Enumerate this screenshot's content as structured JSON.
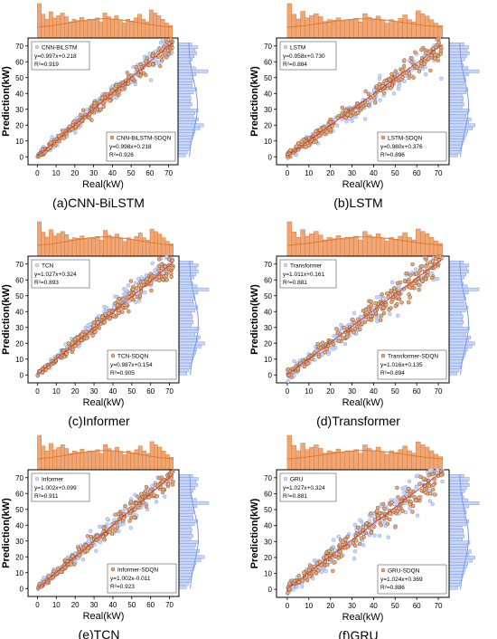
{
  "colors": {
    "blue_fill": "#c9d6f5",
    "blue_edge": "#7d9ae6",
    "orange_fill": "#f0a777",
    "orange_edge": "#e0792f",
    "point_stroke": "#5a4630",
    "fit_line": "#d9463a",
    "frame": "#000000"
  },
  "chart_data": [
    {
      "type": "scatter",
      "caption": "(a)CNN-BiLSTM",
      "xlabel": "Real(kW)",
      "ylabel": "Prediction(kW)",
      "xlim": [
        -5,
        75
      ],
      "ylim": [
        -5,
        75
      ],
      "xticks": [
        "0",
        "10",
        "20",
        "30",
        "40",
        "50",
        "60",
        "70"
      ],
      "yticks": [
        "0",
        "10",
        "20",
        "30",
        "40",
        "50",
        "60",
        "70"
      ],
      "grid": false,
      "marginal_histograms": true,
      "legend_top": {
        "name": "CNN-BiLSTM",
        "equation": "y=0.997x+0.218",
        "r2": "R²=0.919"
      },
      "legend_bottom": {
        "name": "CNN-BiLSTM-SDQN",
        "equation": "y=0.998x+0.218",
        "r2": "R²=0.926"
      },
      "fits": [
        {
          "slope": 0.997,
          "intercept": 0.218
        },
        {
          "slope": 0.998,
          "intercept": 0.218
        }
      ],
      "scatter_range": [
        0,
        72
      ],
      "spread": 2.5,
      "hist_top": [
        55,
        38,
        30,
        42,
        32,
        36,
        40,
        34,
        26,
        30,
        28,
        33,
        27,
        30,
        29,
        32,
        26,
        40,
        34,
        30,
        36,
        29,
        24,
        30,
        27,
        32,
        38,
        30,
        26,
        45,
        40,
        36,
        30,
        24,
        20
      ],
      "hist_right": [
        24,
        30,
        35,
        38,
        41,
        44,
        48,
        52,
        55,
        70,
        82,
        58,
        66,
        50,
        54,
        64,
        38,
        45,
        40,
        42,
        38,
        50,
        60,
        46,
        44,
        50,
        48,
        58,
        96,
        56,
        42,
        38,
        46,
        52,
        60,
        55,
        62,
        44
      ]
    },
    {
      "type": "scatter",
      "caption": "(b)LSTM",
      "xlabel": "Real(kW)",
      "ylabel": "Prediction(kW)",
      "xlim": [
        -5,
        75
      ],
      "ylim": [
        -5,
        75
      ],
      "xticks": [
        "0",
        "10",
        "20",
        "30",
        "40",
        "50",
        "60",
        "70"
      ],
      "yticks": [
        "0",
        "10",
        "20",
        "30",
        "40",
        "50",
        "60",
        "70"
      ],
      "grid": false,
      "marginal_histograms": true,
      "legend_top": {
        "name": "LSTM",
        "equation": "y=0.958x+0.730",
        "r2": "R²=0.884"
      },
      "legend_bottom": {
        "name": "LSTM-SDQN",
        "equation": "y=0.980x+0.376",
        "r2": "R²=0.896"
      },
      "fits": [
        {
          "slope": 0.958,
          "intercept": 0.73
        },
        {
          "slope": 0.98,
          "intercept": 0.376
        }
      ],
      "scatter_range": [
        0,
        72
      ],
      "spread": 3.5,
      "hist_top": [
        58,
        40,
        32,
        45,
        34,
        38,
        41,
        36,
        28,
        31,
        30,
        34,
        29,
        31,
        30,
        33,
        27,
        41,
        35,
        31,
        37,
        30,
        25,
        31,
        28,
        33,
        39,
        31,
        27,
        46,
        41,
        37,
        31,
        25,
        21
      ],
      "hist_right": [
        26,
        32,
        36,
        40,
        42,
        46,
        50,
        54,
        58,
        72,
        80,
        60,
        68,
        52,
        56,
        62,
        40,
        46,
        42,
        44,
        40,
        52,
        58,
        48,
        46,
        52,
        50,
        60,
        92,
        58,
        44,
        40,
        48,
        54,
        62,
        56,
        60,
        46
      ]
    },
    {
      "type": "scatter",
      "caption": "(c)Informer",
      "xlabel": "Real(kW)",
      "ylabel": "Prediction(kW)",
      "xlim": [
        -5,
        75
      ],
      "ylim": [
        -5,
        75
      ],
      "xticks": [
        "0",
        "10",
        "20",
        "30",
        "40",
        "50",
        "60",
        "70"
      ],
      "yticks": [
        "0",
        "10",
        "20",
        "30",
        "40",
        "50",
        "60",
        "70"
      ],
      "grid": false,
      "marginal_histograms": true,
      "legend_top": {
        "name": "TCN",
        "equation": "y=1.027x+0.324",
        "r2": "R²=0.893"
      },
      "legend_bottom": {
        "name": "TCN-SDQN",
        "equation": "y=0.987x+0.154",
        "r2": "R²=0.905"
      },
      "fits": [
        {
          "slope": 1.027,
          "intercept": 0.324
        },
        {
          "slope": 0.987,
          "intercept": 0.154
        }
      ],
      "scatter_range": [
        0,
        72
      ],
      "spread": 3.0,
      "hist_top": [
        56,
        39,
        31,
        43,
        33,
        37,
        40,
        35,
        27,
        30,
        29,
        33,
        28,
        30,
        29,
        32,
        26,
        42,
        34,
        30,
        36,
        29,
        24,
        30,
        27,
        32,
        38,
        30,
        26,
        44,
        40,
        36,
        30,
        24,
        20
      ],
      "hist_right": [
        25,
        31,
        35,
        39,
        41,
        45,
        49,
        53,
        56,
        71,
        81,
        59,
        67,
        51,
        55,
        63,
        39,
        45,
        41,
        43,
        39,
        51,
        59,
        47,
        45,
        51,
        49,
        59,
        94,
        57,
        43,
        39,
        47,
        53,
        61,
        55,
        61,
        45
      ]
    },
    {
      "type": "scatter",
      "caption": "(d)Transformer",
      "xlabel": "Real(kW)",
      "ylabel": "Prediction(kW)",
      "xlim": [
        -5,
        75
      ],
      "ylim": [
        -5,
        75
      ],
      "xticks": [
        "0",
        "10",
        "20",
        "30",
        "40",
        "50",
        "60",
        "70"
      ],
      "yticks": [
        "0",
        "10",
        "20",
        "30",
        "40",
        "50",
        "60",
        "70"
      ],
      "grid": false,
      "marginal_histograms": true,
      "legend_top": {
        "name": "Transformer",
        "equation": "y=1.011x+0.161",
        "r2": "R²=0.881"
      },
      "legend_bottom": {
        "name": "Transformer-SDQN",
        "equation": "y=1.016x+0.135",
        "r2": "R²=0.894"
      },
      "fits": [
        {
          "slope": 1.011,
          "intercept": 0.161
        },
        {
          "slope": 1.016,
          "intercept": 0.135
        }
      ],
      "scatter_range": [
        0,
        72
      ],
      "spread": 4.5,
      "hist_top": [
        57,
        40,
        31,
        44,
        33,
        37,
        41,
        35,
        27,
        31,
        29,
        34,
        28,
        31,
        30,
        33,
        27,
        41,
        35,
        31,
        37,
        30,
        25,
        31,
        28,
        33,
        39,
        31,
        27,
        45,
        41,
        37,
        31,
        25,
        21
      ],
      "hist_right": [
        25,
        31,
        36,
        39,
        42,
        45,
        49,
        53,
        57,
        71,
        80,
        60,
        67,
        52,
        55,
        63,
        40,
        45,
        42,
        43,
        39,
        52,
        59,
        48,
        45,
        52,
        49,
        60,
        93,
        57,
        44,
        40,
        47,
        53,
        61,
        56,
        61,
        45
      ]
    },
    {
      "type": "scatter",
      "caption": "(e)TCN",
      "xlabel": "Real(kW)",
      "ylabel": "Prediction(kW)",
      "xlim": [
        -5,
        75
      ],
      "ylim": [
        -5,
        75
      ],
      "xticks": [
        "0",
        "10",
        "20",
        "30",
        "40",
        "50",
        "60",
        "70"
      ],
      "yticks": [
        "0",
        "10",
        "20",
        "30",
        "40",
        "50",
        "60",
        "70"
      ],
      "grid": false,
      "marginal_histograms": true,
      "legend_top": {
        "name": "Informer",
        "equation": "y=1.002x+0.099",
        "r2": "R²=0.911"
      },
      "legend_bottom": {
        "name": "Informer-SDQN",
        "equation": "y=1.002x-0.011",
        "r2": "R²=0.923"
      },
      "fits": [
        {
          "slope": 1.002,
          "intercept": 0.099
        },
        {
          "slope": 1.002,
          "intercept": -0.011
        }
      ],
      "scatter_range": [
        0,
        72
      ],
      "spread": 2.8,
      "hist_top": [
        55,
        38,
        30,
        42,
        32,
        36,
        40,
        34,
        26,
        30,
        28,
        33,
        27,
        30,
        29,
        32,
        26,
        40,
        34,
        30,
        36,
        29,
        24,
        30,
        27,
        32,
        38,
        30,
        26,
        45,
        40,
        36,
        30,
        24,
        20
      ],
      "hist_right": [
        24,
        30,
        35,
        38,
        41,
        44,
        48,
        52,
        55,
        70,
        82,
        58,
        66,
        50,
        54,
        64,
        38,
        45,
        40,
        42,
        38,
        50,
        60,
        46,
        44,
        50,
        48,
        58,
        96,
        56,
        42,
        38,
        46,
        52,
        60,
        55,
        62,
        44
      ]
    },
    {
      "type": "scatter",
      "caption": "(f)GRU",
      "xlabel": "Real(kW)",
      "ylabel": "Prediction(kW)",
      "xlim": [
        -5,
        75
      ],
      "ylim": [
        -5,
        75
      ],
      "xticks": [
        "0",
        "10",
        "20",
        "30",
        "40",
        "50",
        "60",
        "70"
      ],
      "yticks": [
        "0",
        "10",
        "20",
        "30",
        "40",
        "50",
        "60",
        "70"
      ],
      "grid": false,
      "marginal_histograms": true,
      "legend_top": {
        "name": "GRU",
        "equation": "y=1.027x+0.324",
        "r2": "R²=0.881"
      },
      "legend_bottom": {
        "name": "GRU-SDQN",
        "equation": "y=1.024x+0.369",
        "r2": "R²=0.886"
      },
      "fits": [
        {
          "slope": 1.027,
          "intercept": 0.324
        },
        {
          "slope": 1.024,
          "intercept": 0.369
        }
      ],
      "scatter_range": [
        0,
        72
      ],
      "spread": 4.8,
      "hist_top": [
        58,
        41,
        32,
        45,
        34,
        38,
        42,
        36,
        28,
        32,
        30,
        35,
        29,
        32,
        31,
        34,
        28,
        42,
        36,
        32,
        38,
        31,
        26,
        32,
        29,
        34,
        40,
        32,
        28,
        47,
        42,
        38,
        32,
        26,
        22
      ],
      "hist_right": [
        26,
        32,
        37,
        40,
        43,
        46,
        50,
        54,
        58,
        72,
        80,
        61,
        68,
        53,
        56,
        64,
        41,
        46,
        43,
        44,
        40,
        53,
        60,
        49,
        46,
        53,
        50,
        61,
        92,
        58,
        45,
        41,
        48,
        54,
        62,
        57,
        62,
        46
      ]
    }
  ]
}
